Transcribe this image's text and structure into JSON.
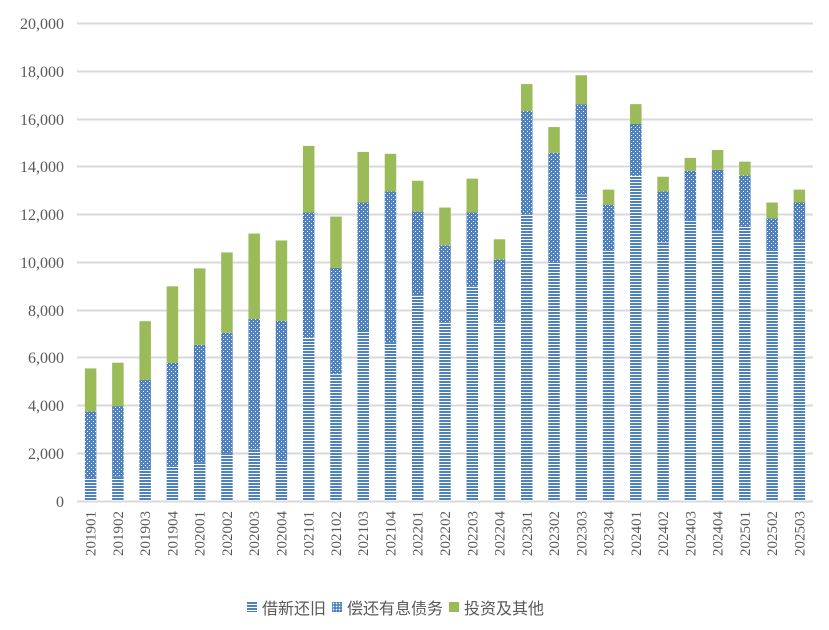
{
  "chart_data": {
    "type": "bar",
    "stacked": true,
    "title": "",
    "xlabel": "",
    "ylabel": "",
    "ylim": [
      0,
      20000
    ],
    "yticks": [
      0,
      2000,
      4000,
      6000,
      8000,
      10000,
      12000,
      14000,
      16000,
      18000,
      20000
    ],
    "ytick_labels": [
      "0",
      "2,000",
      "4,000",
      "6,000",
      "8,000",
      "10,000",
      "12,000",
      "14,000",
      "16,000",
      "18,000",
      "20,000"
    ],
    "grid": true,
    "legend_position": "bottom",
    "categories": [
      "201901",
      "201902",
      "201903",
      "201904",
      "202001",
      "202002",
      "202003",
      "202004",
      "202101",
      "202102",
      "202103",
      "202104",
      "202201",
      "202202",
      "202203",
      "202204",
      "202301",
      "202302",
      "202303",
      "202304",
      "202401",
      "202402",
      "202403",
      "202404",
      "202501",
      "202502",
      "202503"
    ],
    "series": [
      {
        "name": "借新还旧",
        "pattern": "horizontal-stripes",
        "color": "#4f81bd",
        "values": [
          970,
          1000,
          1330,
          1460,
          1610,
          1990,
          2140,
          1670,
          6830,
          5300,
          7150,
          6620,
          8610,
          7480,
          8980,
          7480,
          12000,
          10000,
          12820,
          10490,
          13610,
          10820,
          11780,
          11320,
          11520,
          10520,
          10930
        ]
      },
      {
        "name": "偿还有息债务",
        "pattern": "dots",
        "color": "#4f81bd",
        "values": [
          2770,
          2960,
          3740,
          4320,
          4920,
          5040,
          5470,
          5860,
          5240,
          4450,
          5340,
          6330,
          3500,
          3220,
          3090,
          2630,
          4320,
          4570,
          3790,
          1910,
          2170,
          2130,
          2040,
          2540,
          2110,
          1310,
          1560
        ]
      },
      {
        "name": "投资及其他",
        "pattern": "solid",
        "color": "#9bbb59",
        "values": [
          1800,
          1820,
          2450,
          3200,
          3200,
          3370,
          3580,
          3370,
          2790,
          2150,
          2120,
          1580,
          1290,
          1580,
          1420,
          840,
          1130,
          1080,
          1210,
          630,
          830,
          620,
          540,
          830,
          570,
          660,
          540
        ]
      }
    ]
  }
}
